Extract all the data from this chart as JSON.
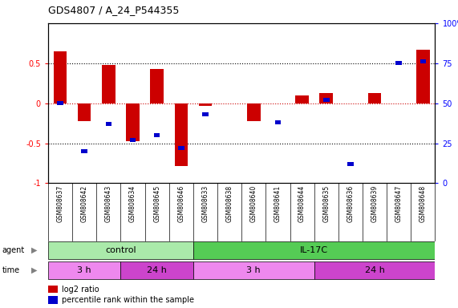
{
  "title": "GDS4807 / A_24_P544355",
  "samples": [
    "GSM808637",
    "GSM808642",
    "GSM808643",
    "GSM808634",
    "GSM808645",
    "GSM808646",
    "GSM808633",
    "GSM808638",
    "GSM808640",
    "GSM808641",
    "GSM808644",
    "GSM808635",
    "GSM808636",
    "GSM808639",
    "GSM808647",
    "GSM808648"
  ],
  "log2_ratio": [
    0.65,
    -0.22,
    0.48,
    -0.47,
    0.43,
    -0.78,
    -0.03,
    0.0,
    -0.22,
    0.0,
    0.1,
    0.13,
    0.0,
    0.13,
    0.0,
    0.67
  ],
  "percentile_pct": [
    50,
    20,
    37,
    27,
    30,
    22,
    43,
    0,
    0,
    38,
    0,
    52,
    12,
    0,
    75,
    76
  ],
  "agent_groups": [
    {
      "label": "control",
      "start": 0,
      "end": 6,
      "color": "#aaeaaa"
    },
    {
      "label": "IL-17C",
      "start": 6,
      "end": 16,
      "color": "#55cc55"
    }
  ],
  "time_groups": [
    {
      "label": "3 h",
      "start": 0,
      "end": 3,
      "color": "#ee88ee"
    },
    {
      "label": "24 h",
      "start": 3,
      "end": 6,
      "color": "#cc44cc"
    },
    {
      "label": "3 h",
      "start": 6,
      "end": 11,
      "color": "#ee88ee"
    },
    {
      "label": "24 h",
      "start": 11,
      "end": 16,
      "color": "#cc44cc"
    }
  ],
  "bar_color_red": "#CC0000",
  "bar_color_blue": "#0000CC",
  "bg_color": "#FFFFFF",
  "sample_bg_color": "#C8C8C8"
}
